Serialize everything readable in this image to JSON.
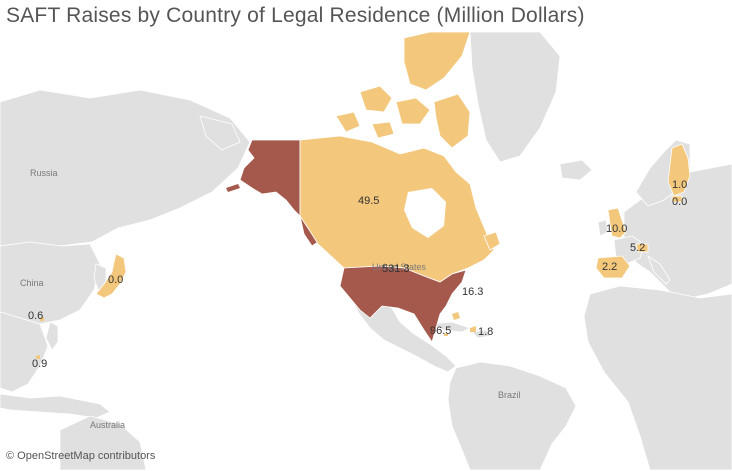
{
  "title": "SAFT Raises by Country of Legal Residence (Million Dollars)",
  "attribution": "© OpenStreetMap contributors",
  "colors": {
    "high": "#a5584c",
    "mid": "#eec880",
    "low": "#f3c87c",
    "base": "#e0e0e0",
    "ocean": "#ffffff"
  },
  "place_labels": {
    "russia": "Russia",
    "china": "China",
    "australia": "Australia",
    "brazil": "Brazil",
    "united_states": "United States"
  },
  "regions": {
    "usa": {
      "country": "United States",
      "value": "531.3"
    },
    "canada": {
      "country": "Canada",
      "value": "49.5"
    },
    "bahamas": {
      "country": "Bahamas",
      "value": "16.3"
    },
    "cayman": {
      "country": "Cayman Islands",
      "value": "96.5"
    },
    "bvi": {
      "country": "British Virgin Islands",
      "value": "1.8"
    },
    "japan": {
      "country": "Japan",
      "value": "0.0"
    },
    "hongkong": {
      "country": "Hong Kong",
      "value": "0.6"
    },
    "singapore": {
      "country": "Singapore",
      "value": "0.9"
    },
    "uk": {
      "country": "United Kingdom",
      "value": "10.0"
    },
    "switzerland": {
      "country": "Switzerland",
      "value": "5.2"
    },
    "spain": {
      "country": "Spain",
      "value": "2.2"
    },
    "finland": {
      "country": "Finland",
      "value": "1.0"
    },
    "estonia": {
      "country": "Estonia",
      "value": "0.0"
    }
  }
}
